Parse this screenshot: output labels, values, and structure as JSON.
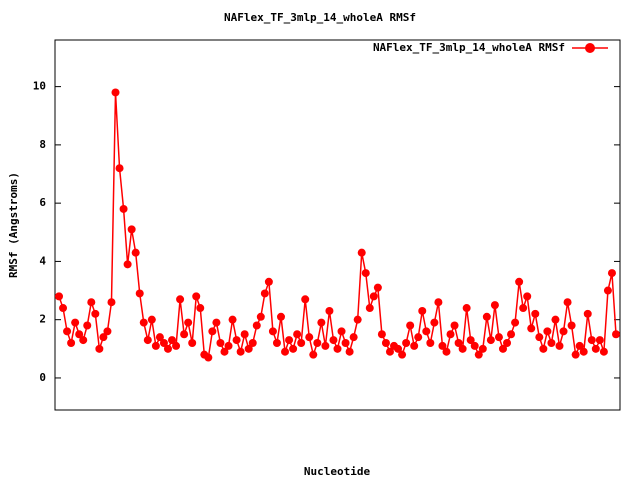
{
  "chart_data": {
    "type": "line",
    "title": "NAFlex_TF_3mlp_14_wholeA RMSf",
    "x_label": "Nucleotide",
    "y_label": "RMSf (Angstroms)",
    "legend_position": "top-right",
    "ylim": [
      -1.1,
      11.6
    ],
    "yticks": [
      0,
      2,
      4,
      6,
      8,
      10
    ],
    "series": [
      {
        "name": "NAFlex_TF_3mlp_14_wholeA RMSf",
        "color": "#ff0000",
        "values": [
          2.8,
          2.4,
          1.6,
          1.2,
          1.9,
          1.5,
          1.3,
          1.8,
          2.6,
          2.2,
          1.0,
          1.4,
          1.6,
          2.6,
          9.8,
          7.2,
          5.8,
          3.9,
          5.1,
          4.3,
          2.9,
          1.9,
          1.3,
          2.0,
          1.1,
          1.4,
          1.2,
          1.0,
          1.3,
          1.1,
          2.7,
          1.5,
          1.9,
          1.2,
          2.8,
          2.4,
          0.8,
          0.7,
          1.6,
          1.9,
          1.2,
          0.9,
          1.1,
          2.0,
          1.3,
          0.9,
          1.5,
          1.0,
          1.2,
          1.8,
          2.1,
          2.9,
          3.3,
          1.6,
          1.2,
          2.1,
          0.9,
          1.3,
          1.0,
          1.5,
          1.2,
          2.7,
          1.4,
          0.8,
          1.2,
          1.9,
          1.1,
          2.3,
          1.3,
          1.0,
          1.6,
          1.2,
          0.9,
          1.4,
          2.0,
          4.3,
          3.6,
          2.4,
          2.8,
          3.1,
          1.5,
          1.2,
          0.9,
          1.1,
          1.0,
          0.8,
          1.2,
          1.8,
          1.1,
          1.4,
          2.3,
          1.6,
          1.2,
          1.9,
          2.6,
          1.1,
          0.9,
          1.5,
          1.8,
          1.2,
          1.0,
          2.4,
          1.3,
          1.1,
          0.8,
          1.0,
          2.1,
          1.3,
          2.5,
          1.4,
          1.0,
          1.2,
          1.5,
          1.9,
          3.3,
          2.4,
          2.8,
          1.7,
          2.2,
          1.4,
          1.0,
          1.6,
          1.2,
          2.0,
          1.1,
          1.6,
          2.6,
          1.8,
          0.8,
          1.1,
          0.9,
          2.2,
          1.3,
          1.0,
          1.3,
          0.9,
          3.0,
          3.6,
          1.5
        ]
      }
    ]
  }
}
